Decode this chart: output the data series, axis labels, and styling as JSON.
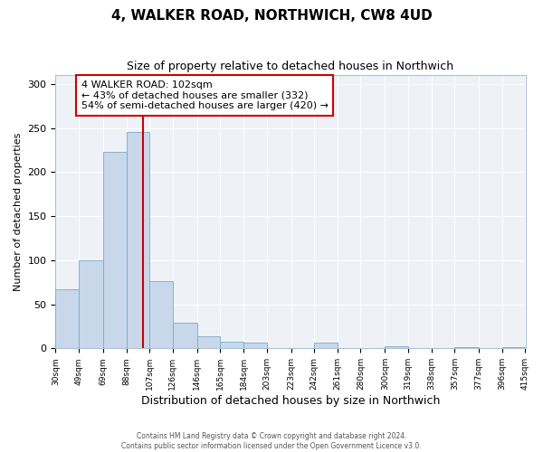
{
  "title": "4, WALKER ROAD, NORTHWICH, CW8 4UD",
  "subtitle": "Size of property relative to detached houses in Northwich",
  "xlabel": "Distribution of detached houses by size in Northwich",
  "ylabel": "Number of detached properties",
  "bar_color": "#c8d8ea",
  "bar_edge_color": "#7aaac8",
  "bin_edges": [
    30,
    49,
    69,
    88,
    107,
    126,
    146,
    165,
    184,
    203,
    223,
    242,
    261,
    280,
    300,
    319,
    338,
    357,
    377,
    396,
    415
  ],
  "bar_heights": [
    67,
    100,
    223,
    245,
    76,
    29,
    14,
    8,
    7,
    0,
    0,
    6,
    0,
    0,
    2,
    0,
    0,
    1,
    0,
    1
  ],
  "tick_labels": [
    "30sqm",
    "49sqm",
    "69sqm",
    "88sqm",
    "107sqm",
    "126sqm",
    "146sqm",
    "165sqm",
    "184sqm",
    "203sqm",
    "223sqm",
    "242sqm",
    "261sqm",
    "280sqm",
    "300sqm",
    "319sqm",
    "338sqm",
    "357sqm",
    "377sqm",
    "396sqm",
    "415sqm"
  ],
  "property_size": 102,
  "vline_color": "#cc0000",
  "annotation_title": "4 WALKER ROAD: 102sqm",
  "annotation_line1": "← 43% of detached houses are smaller (332)",
  "annotation_line2": "54% of semi-detached houses are larger (420) →",
  "annotation_box_color": "#cc0000",
  "ylim": [
    0,
    310
  ],
  "yticks": [
    0,
    50,
    100,
    150,
    200,
    250,
    300
  ],
  "footer_line1": "Contains HM Land Registry data © Crown copyright and database right 2024.",
  "footer_line2": "Contains public sector information licensed under the Open Government Licence v3.0.",
  "bg_color": "#eef2f7"
}
